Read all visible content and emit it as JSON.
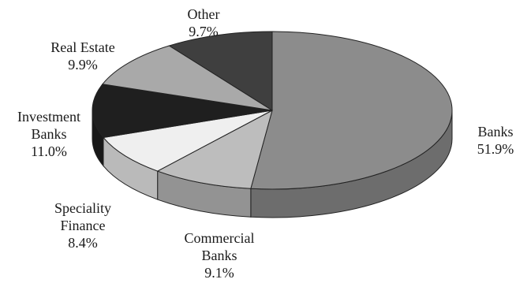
{
  "chart_data": {
    "type": "pie",
    "style": "3d",
    "legend": "none",
    "slices": [
      {
        "name": "Banks",
        "lines": [
          "Banks"
        ],
        "pct_text": "51.9%",
        "value": 51.9,
        "color": "#8c8c8c"
      },
      {
        "name": "Commercial Banks",
        "lines": [
          "Commercial",
          "Banks"
        ],
        "pct_text": "9.1%",
        "value": 9.1,
        "color": "#bdbdbd"
      },
      {
        "name": "Speciality Finance",
        "lines": [
          "Speciality",
          "Finance"
        ],
        "pct_text": "8.4%",
        "value": 8.4,
        "color": "#efefef"
      },
      {
        "name": "Investment Banks",
        "lines": [
          "Investment",
          "Banks"
        ],
        "pct_text": "11.0%",
        "value": 11.0,
        "color": "#1f1f1f"
      },
      {
        "name": "Real Estate",
        "lines": [
          "Real Estate"
        ],
        "pct_text": "9.9%",
        "value": 9.9,
        "color": "#a9a9a9"
      },
      {
        "name": "Other",
        "lines": [
          "Other"
        ],
        "pct_text": "9.7%",
        "value": 9.7,
        "color": "#3f3f3f"
      }
    ]
  }
}
